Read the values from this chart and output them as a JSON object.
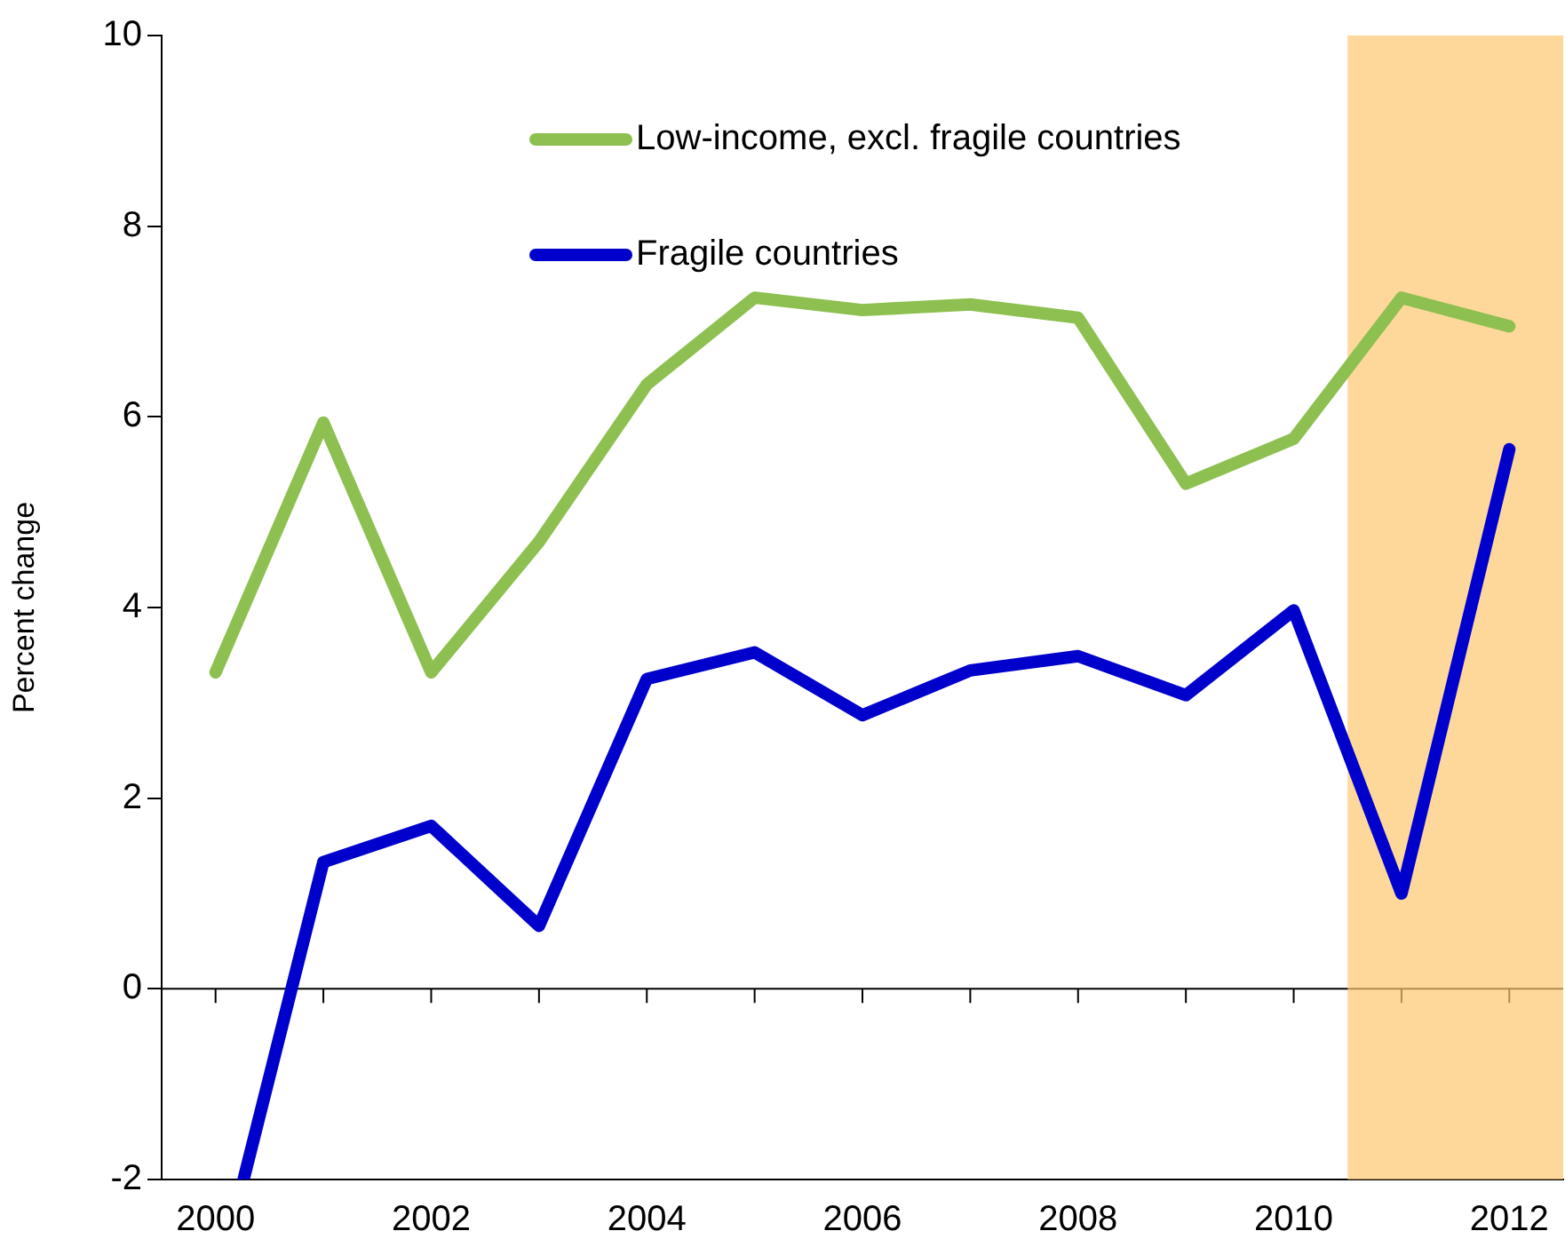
{
  "chart_data": {
    "type": "line",
    "ylabel": "Percent change",
    "xlim": [
      1999.5,
      2012.5
    ],
    "xticks": [
      2000,
      {
        "value": 2001,
        "label": null
      },
      2002,
      {
        "value": 2003,
        "label": null
      },
      2004,
      {
        "value": 2005,
        "label": null
      },
      2006,
      {
        "value": 2007,
        "label": null
      },
      2008,
      {
        "value": 2009,
        "label": null
      },
      2010,
      {
        "value": 2011,
        "label": null
      },
      2012
    ],
    "ylim": [
      -2,
      10
    ],
    "yticks": [
      -2,
      0,
      2,
      4,
      6,
      8,
      10
    ],
    "x": [
      2000,
      2001,
      2002,
      2003,
      2004,
      2005,
      2006,
      2007,
      2008,
      2009,
      2010,
      2011,
      2012
    ],
    "series": [
      {
        "name": "Low-income, excl. fragile countries",
        "color": "#8dc050",
        "values": [
          3.32,
          5.94,
          3.32,
          4.69,
          6.34,
          7.25,
          7.12,
          7.18,
          7.04,
          5.3,
          5.77,
          7.25,
          6.95
        ]
      },
      {
        "name": "Fragile countries",
        "color": "#0000cc",
        "x": [
          2000.26,
          2001,
          2002,
          2003,
          2004,
          2005,
          2006,
          2007,
          2008,
          2009,
          2010,
          2011,
          2012
        ],
        "values": [
          -2,
          1.33,
          1.71,
          0.66,
          3.25,
          3.53,
          2.87,
          3.34,
          3.49,
          3.08,
          3.97,
          1.0,
          5.66
        ]
      }
    ],
    "ref_lines": [
      {
        "axis": "y",
        "value": 0,
        "color": "#000000"
      }
    ],
    "bands": [
      {
        "axis": "x",
        "from": 2010.5,
        "to": 2012.5,
        "color": "#fdc870"
      }
    ],
    "legend": "top",
    "grid": false,
    "marker": "none",
    "line_style": "solid"
  }
}
